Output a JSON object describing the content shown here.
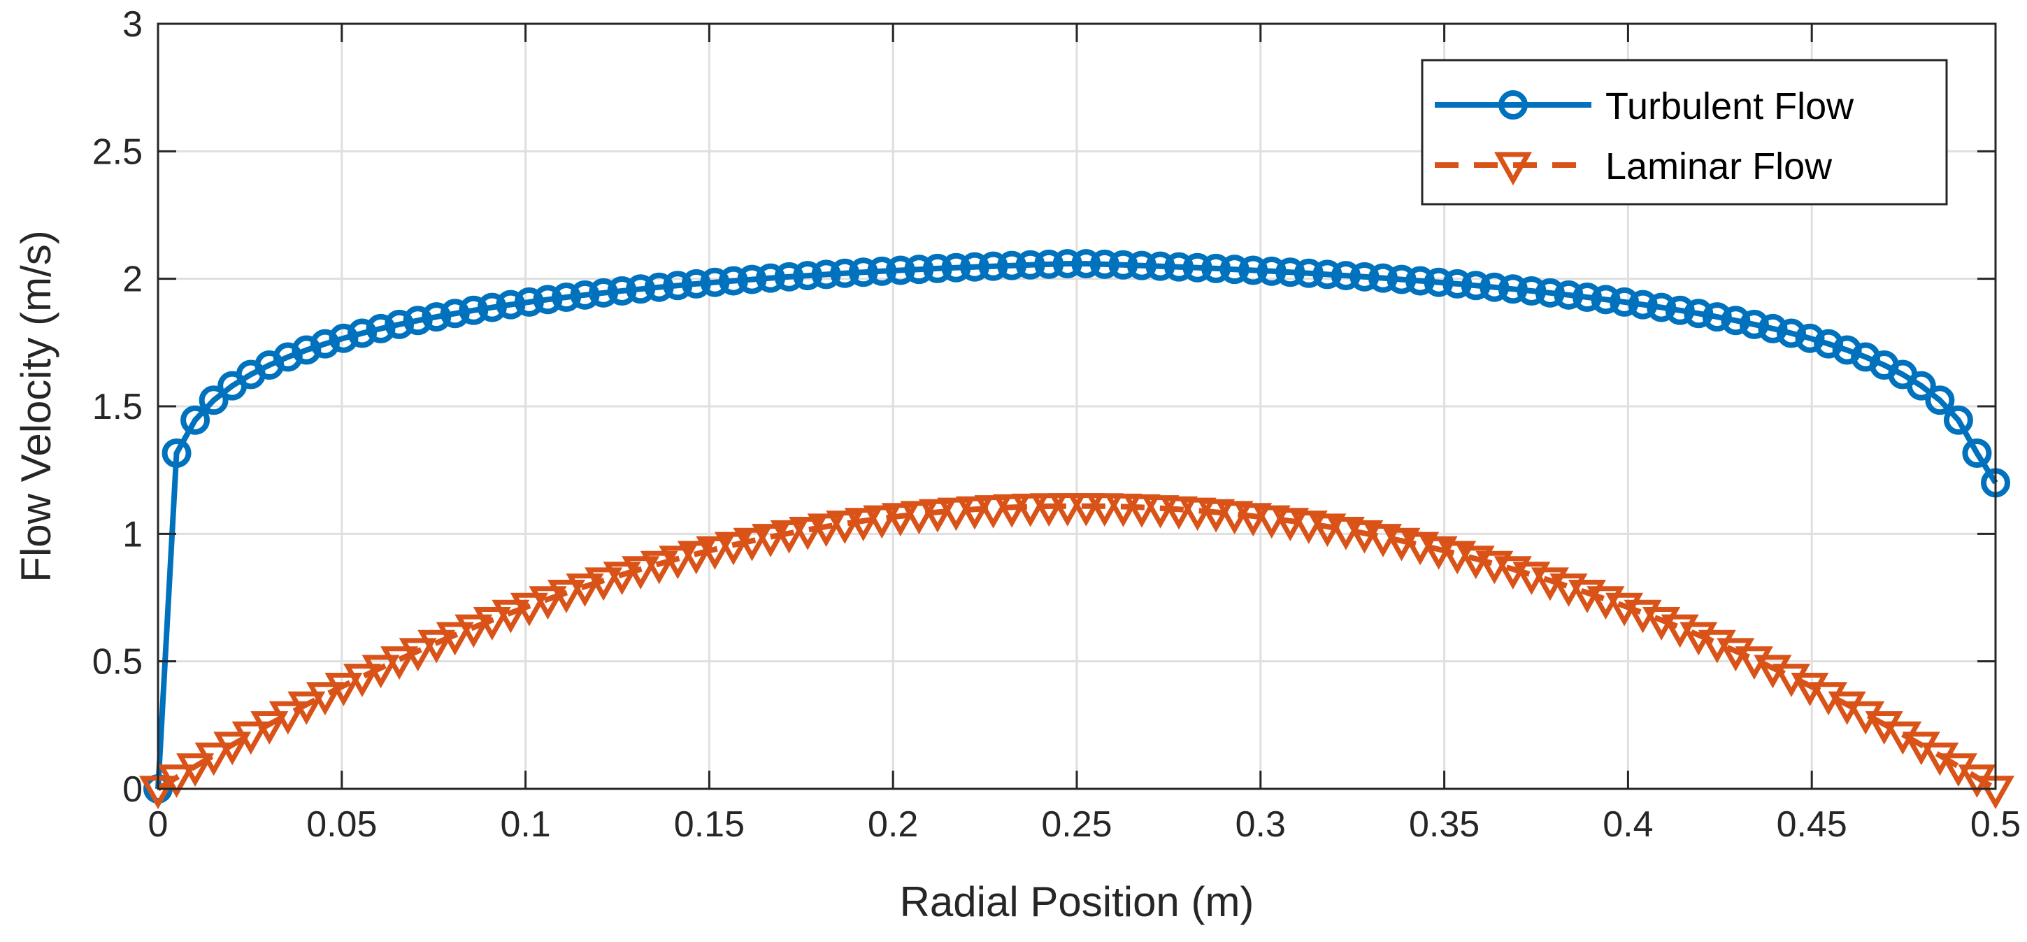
{
  "chart_data": {
    "type": "line",
    "title": "",
    "xlabel": "Radial Position (m)",
    "ylabel": "Flow Velocity (m/s)",
    "xlim": [
      0,
      0.5
    ],
    "ylim": [
      0,
      3
    ],
    "grid": true,
    "x_ticks": [
      0,
      0.05,
      0.1,
      0.15,
      0.2,
      0.25,
      0.3,
      0.35,
      0.4,
      0.45,
      0.5
    ],
    "x_tick_labels": [
      "0",
      "0.05",
      "0.1",
      "0.15",
      "0.2",
      "0.25",
      "0.3",
      "0.35",
      "0.4",
      "0.45",
      "0.5"
    ],
    "y_ticks": [
      0,
      0.5,
      1,
      1.5,
      2,
      2.5,
      3
    ],
    "y_tick_labels": [
      "0",
      "0.5",
      "1",
      "1.5",
      "2",
      "2.5",
      "3"
    ],
    "legend_position": "top-right",
    "x": [
      0,
      0.00505,
      0.0101,
      0.01515,
      0.0202,
      0.02525,
      0.0303,
      0.03535,
      0.0404,
      0.04545,
      0.0505,
      0.05556,
      0.06061,
      0.06566,
      0.07071,
      0.07576,
      0.08081,
      0.08586,
      0.09091,
      0.09596,
      0.10101,
      0.10606,
      0.11111,
      0.11616,
      0.12121,
      0.12626,
      0.13131,
      0.13636,
      0.14141,
      0.14646,
      0.15152,
      0.15657,
      0.16162,
      0.16667,
      0.17172,
      0.17677,
      0.18182,
      0.18687,
      0.19192,
      0.19697,
      0.20202,
      0.20707,
      0.21212,
      0.21717,
      0.22222,
      0.22727,
      0.23232,
      0.23737,
      0.24242,
      0.24747,
      0.25253,
      0.25758,
      0.26263,
      0.26768,
      0.27273,
      0.27778,
      0.28283,
      0.28788,
      0.29293,
      0.29798,
      0.30303,
      0.30808,
      0.31313,
      0.31818,
      0.32323,
      0.32828,
      0.33333,
      0.33838,
      0.34343,
      0.34848,
      0.35354,
      0.35859,
      0.36364,
      0.36869,
      0.37374,
      0.37879,
      0.38384,
      0.38889,
      0.39394,
      0.39899,
      0.40404,
      0.40909,
      0.41414,
      0.41919,
      0.42424,
      0.42929,
      0.43434,
      0.43939,
      0.44444,
      0.44949,
      0.45455,
      0.4596,
      0.46465,
      0.4697,
      0.47475,
      0.4798,
      0.48485,
      0.4899,
      0.49495,
      0.5
    ],
    "series": [
      {
        "name": "Turbulent Flow",
        "color": "#0072BD",
        "line_style": "solid",
        "marker": "circle",
        "values": [
          0,
          1.3163,
          1.4459,
          1.5239,
          1.5804,
          1.6248,
          1.6617,
          1.6932,
          1.7206,
          1.745,
          1.7668,
          1.7866,
          1.8046,
          1.8212,
          1.8365,
          1.8507,
          1.8639,
          1.8763,
          1.8878,
          1.8987,
          1.909,
          1.9187,
          1.9278,
          1.9365,
          1.9447,
          1.9525,
          1.9599,
          1.967,
          1.9737,
          1.9801,
          1.9862,
          1.992,
          1.9975,
          2.0028,
          2.0078,
          2.0126,
          2.0172,
          2.0216,
          2.0257,
          2.0297,
          2.0334,
          2.037,
          2.0404,
          2.0436,
          2.0466,
          2.0494,
          2.0521,
          2.0546,
          2.057,
          2.0592,
          2.0592,
          2.057,
          2.0546,
          2.0521,
          2.0494,
          2.0466,
          2.0436,
          2.0404,
          2.037,
          2.0334,
          2.0297,
          2.0257,
          2.0216,
          2.0172,
          2.0126,
          2.0078,
          2.0028,
          1.9975,
          1.992,
          1.9862,
          1.9801,
          1.9737,
          1.967,
          1.9599,
          1.9525,
          1.9447,
          1.9365,
          1.9278,
          1.9187,
          1.909,
          1.8987,
          1.8878,
          1.8763,
          1.8639,
          1.8507,
          1.8365,
          1.8212,
          1.8046,
          1.7866,
          1.7668,
          1.745,
          1.7206,
          1.6932,
          1.6617,
          1.6248,
          1.5804,
          1.5239,
          1.4459,
          1.3163,
          1.2
        ]
      },
      {
        "name": "Laminar Flow",
        "color": "#D95319",
        "line_style": "dashed",
        "marker": "triangle-down",
        "values": [
          0,
          0.0445,
          0.0881,
          0.1308,
          0.1726,
          0.2134,
          0.2534,
          0.2924,
          0.3306,
          0.3678,
          0.4041,
          0.4395,
          0.474,
          0.5076,
          0.5403,
          0.5721,
          0.6029,
          0.6329,
          0.6619,
          0.69,
          0.7172,
          0.7435,
          0.7689,
          0.7934,
          0.817,
          0.8397,
          0.8614,
          0.8822,
          0.9021,
          0.9211,
          0.9392,
          0.9564,
          0.9726,
          0.9879,
          1.0023,
          1.0158,
          1.0284,
          1.0401,
          1.0508,
          1.0607,
          1.0696,
          1.0776,
          1.0847,
          1.0909,
          1.0961,
          1.1005,
          1.1039,
          1.1064,
          1.108,
          1.1087,
          1.1087,
          1.108,
          1.1064,
          1.1039,
          1.1005,
          1.0961,
          1.0909,
          1.0847,
          1.0776,
          1.0696,
          1.0607,
          1.0508,
          1.0401,
          1.0284,
          1.0158,
          1.0023,
          0.9879,
          0.9726,
          0.9564,
          0.9392,
          0.9211,
          0.9021,
          0.8822,
          0.8614,
          0.8397,
          0.817,
          0.7934,
          0.7689,
          0.7435,
          0.7172,
          0.69,
          0.6619,
          0.6329,
          0.6029,
          0.5721,
          0.5403,
          0.5076,
          0.474,
          0.4395,
          0.4041,
          0.3678,
          0.3306,
          0.2924,
          0.2534,
          0.2134,
          0.1726,
          0.1308,
          0.0881,
          0.0445,
          0
        ]
      }
    ]
  }
}
